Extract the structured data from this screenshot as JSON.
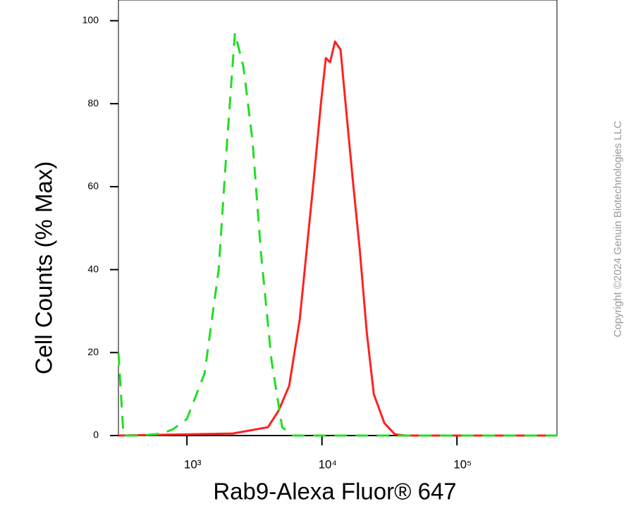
{
  "chart_data": {
    "type": "line",
    "y_label": "Cell Counts (% Max)",
    "x_label": "Rab9-Alexa Fluor® 647",
    "watermark": "Copyright ©2024 Genuin Biotechnologies LLC",
    "x_log": true,
    "xlim": [
      311,
      550000
    ],
    "ylim": [
      0,
      105
    ],
    "xticks": [
      {
        "value": 1000,
        "label": "10³"
      },
      {
        "value": 10000,
        "label": "10⁴"
      },
      {
        "value": 100000,
        "label": "10⁵"
      }
    ],
    "yticks": [
      0,
      20,
      40,
      60,
      80,
      100
    ],
    "series": [
      {
        "color": "#ff2020",
        "dash": false,
        "x": [
          311,
          2185,
          3985,
          4773,
          5716,
          6850,
          7724,
          8710,
          9821,
          10690,
          11480,
          12500,
          13740,
          14960,
          16870,
          19020,
          21460,
          24200,
          28980,
          34690,
          41560,
          550000
        ],
        "values": [
          0,
          0.5,
          2,
          6,
          12,
          28,
          45,
          62,
          80,
          91,
          90,
          95,
          93,
          80,
          62,
          45,
          25,
          10,
          3,
          0.3,
          0,
          0
        ]
      },
      {
        "color": "#22dd22",
        "dash": true,
        "x": [
          311,
          339,
          457,
          656,
          787,
          1000,
          1351,
          1718,
          1986,
          2265,
          2617,
          3060,
          3535,
          4233,
          5070,
          6070,
          16870,
          56100,
          550000
        ],
        "values": [
          20,
          0,
          0,
          0.5,
          1.5,
          4,
          15,
          40,
          71,
          97,
          89,
          71,
          44,
          18,
          2,
          0,
          0,
          0,
          0
        ]
      }
    ]
  }
}
